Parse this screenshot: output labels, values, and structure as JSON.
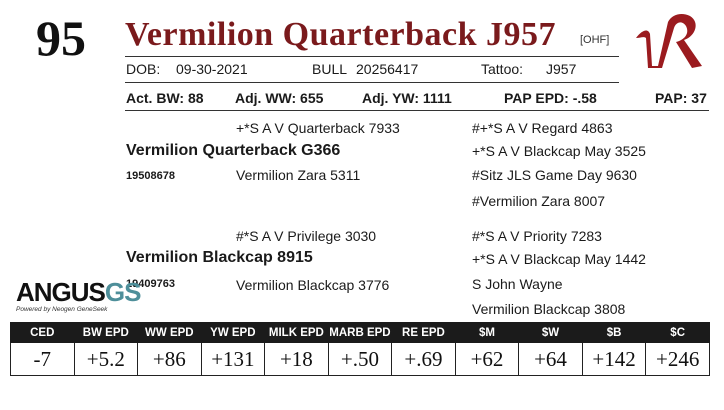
{
  "lot": "95",
  "animal": {
    "name": "Vermilion Quarterback J957",
    "tag": "[OHF]"
  },
  "brand": {
    "logo_text": "VR",
    "logo_icon": "vr-brand-logo-icon",
    "color": "#9b1b1f"
  },
  "info": {
    "dob_label": "DOB:",
    "dob": "09-30-2021",
    "bull_label": "BULL",
    "reg": "20256417",
    "tattoo_label": "Tattoo:",
    "tattoo": "J957"
  },
  "stats": {
    "bw": "Act. BW: 88",
    "ww": "Adj. WW: 655",
    "yw": "Adj. YW: 1111",
    "pap_epd": "PAP EPD: -.58",
    "pap": "PAP: 37"
  },
  "pedigree": {
    "sire": {
      "name": "Vermilion Quarterback G366",
      "reg": "19508678",
      "sire": "+*S A V Quarterback 7933",
      "dam": "Vermilion Zara 5311",
      "ss": "#+*S A V Regard 4863",
      "sd": "+*S A V Blackcap May 3525",
      "ds": "#Sitz JLS Game Day 9630",
      "dd": "#Vermilion Zara 8007"
    },
    "dam": {
      "name": "Vermilion Blackcap 8915",
      "reg": "19409763",
      "sire": "#*S A V Privilege 3030",
      "dam": "Vermilion Blackcap 3776",
      "ss": "#*S A V Priority 7283",
      "sd": "+*S A V Blackcap May 1442",
      "ds": "S John Wayne",
      "dd": "Vermilion Blackcap 3808"
    }
  },
  "angus_logo": {
    "text_a": "ANGUS",
    "text_b": "GS",
    "sub": "Powered by Neogen GeneSeek",
    "icon": "angus-gs-logo-icon"
  },
  "epd": {
    "headers": [
      "CED",
      "BW EPD",
      "WW EPD",
      "YW EPD",
      "MILK EPD",
      "MARB EPD",
      "RE EPD",
      "$M",
      "$W",
      "$B",
      "$C"
    ],
    "values": [
      "-7",
      "+5.2",
      "+86",
      "+131",
      "+18",
      "+.50",
      "+.69",
      "+62",
      "+64",
      "+142",
      "+246"
    ]
  }
}
